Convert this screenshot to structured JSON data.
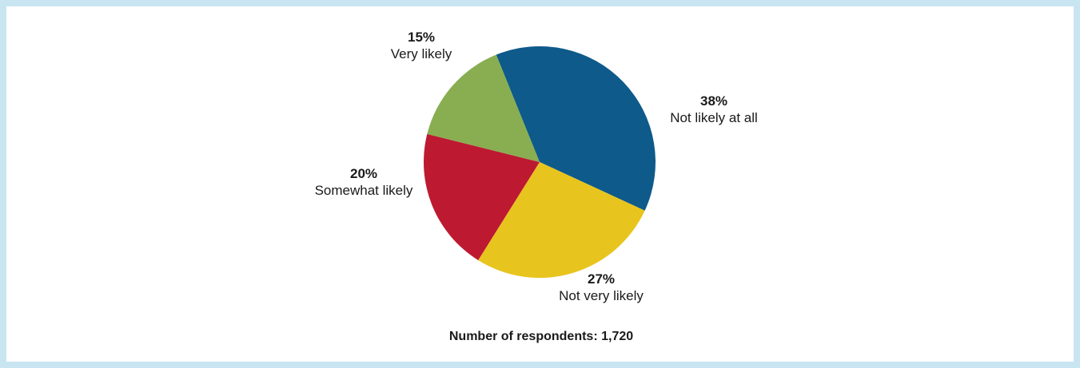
{
  "chart_data": {
    "type": "pie",
    "slices": [
      {
        "percent_label": "38%",
        "label": "Not likely at all",
        "value": 38,
        "color": "#0e5a8a"
      },
      {
        "percent_label": "27%",
        "label": "Not very likely",
        "value": 27,
        "color": "#e8c41e"
      },
      {
        "percent_label": "20%",
        "label": "Somewhat likely",
        "value": 20,
        "color": "#bd1a31"
      },
      {
        "percent_label": "15%",
        "label": "Very likely",
        "value": 15,
        "color": "#88ae51"
      }
    ],
    "note": "Number of respondents: 1,720"
  }
}
